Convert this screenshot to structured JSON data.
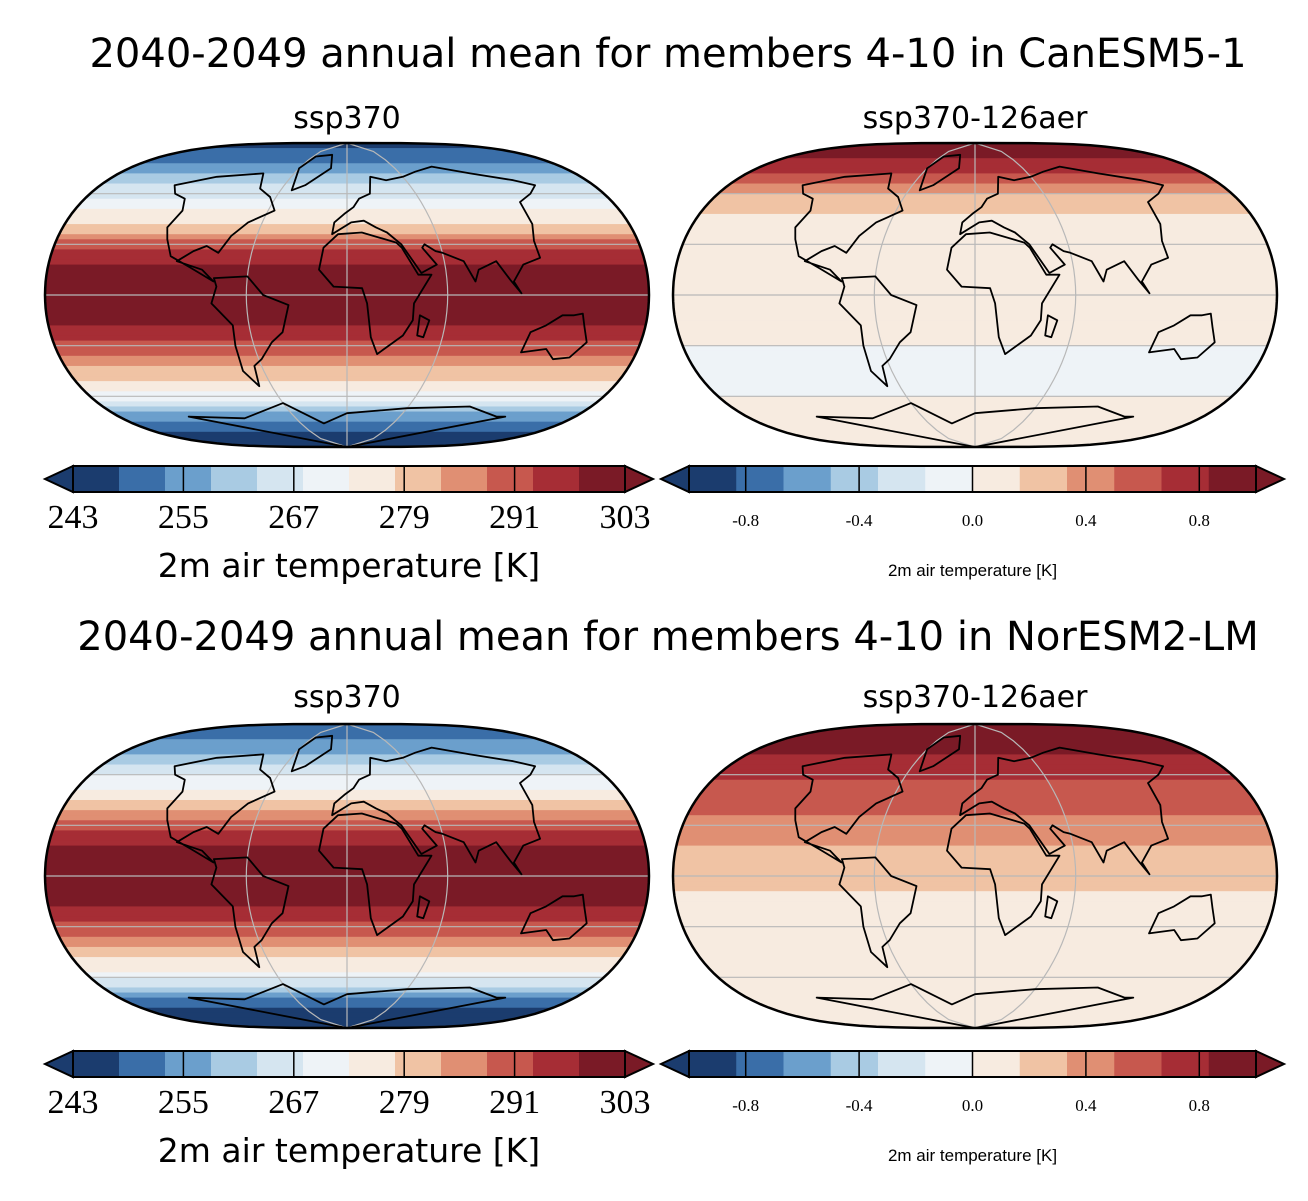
{
  "palette": {
    "rdbu_r_12": [
      "#1b3c6e",
      "#3a6ea8",
      "#6b9fcc",
      "#a9cbe3",
      "#d5e5f0",
      "#eef3f7",
      "#f7ebe0",
      "#f0c3a4",
      "#e08f73",
      "#c7584e",
      "#a62d35",
      "#7a1a26"
    ],
    "continent_outline": "#000000",
    "graticule": "#b8b8b8"
  },
  "chart_data": [
    {
      "type": "heatmap",
      "section_title": "2040-2049 annual mean for members 4-10 in CanESM5-1",
      "panel_title": "ssp370",
      "colorbar_label": "2m air temperature [K]",
      "colorbar_ticks": [
        "243",
        "255",
        "267",
        "279",
        "291",
        "303"
      ],
      "range": [
        243,
        303
      ],
      "levels": 12,
      "extend": "both",
      "field_profile": {
        "lat": [
          90,
          75,
          65,
          55,
          45,
          35,
          25,
          15,
          0,
          -15,
          -25,
          -35,
          -45,
          -55,
          -65,
          -75,
          -90
        ],
        "value": [
          247,
          255,
          263,
          270,
          276,
          285,
          294,
          300,
          302,
          300,
          295,
          289,
          281,
          275,
          265,
          252,
          243
        ]
      }
    },
    {
      "type": "heatmap",
      "section_title": "2040-2049 annual mean for members 4-10 in CanESM5-1",
      "panel_title": "ssp370-126aer",
      "colorbar_label": "2m air temperature [K]",
      "colorbar_ticks": [
        "-0.8",
        "-0.4",
        "0.0",
        "0.4",
        "0.8"
      ],
      "range": [
        -1.0,
        1.0
      ],
      "levels": 12,
      "extend": "both",
      "field_profile": {
        "lat": [
          90,
          75,
          65,
          55,
          45,
          30,
          15,
          0,
          -15,
          -30,
          -45,
          -60,
          -75,
          -90
        ],
        "value": [
          0.95,
          0.75,
          0.45,
          0.2,
          0.15,
          0.15,
          0.1,
          0.05,
          0.05,
          0.0,
          -0.05,
          0.0,
          0.05,
          0.05
        ]
      }
    },
    {
      "type": "heatmap",
      "section_title": "2040-2049 annual mean for members 4-10 in NorESM2-LM",
      "panel_title": "ssp370",
      "colorbar_label": "2m air temperature [K]",
      "colorbar_ticks": [
        "243",
        "255",
        "267",
        "279",
        "291",
        "303"
      ],
      "range": [
        243,
        303
      ],
      "levels": 12,
      "extend": "both",
      "field_profile": {
        "lat": [
          90,
          75,
          65,
          55,
          45,
          35,
          25,
          15,
          0,
          -15,
          -25,
          -35,
          -45,
          -55,
          -65,
          -75,
          -90
        ],
        "value": [
          249,
          256,
          264,
          271,
          277,
          286,
          295,
          300,
          302,
          300,
          295,
          289,
          281,
          274,
          263,
          249,
          243
        ]
      }
    },
    {
      "type": "heatmap",
      "section_title": "2040-2049 annual mean for members 4-10 in NorESM2-LM",
      "panel_title": "ssp370-126aer",
      "colorbar_label": "2m air temperature [K]",
      "colorbar_ticks": [
        "-0.8",
        "-0.4",
        "0.0",
        "0.4",
        "0.8"
      ],
      "range": [
        -1.0,
        1.0
      ],
      "levels": 12,
      "extend": "both",
      "field_profile": {
        "lat": [
          90,
          75,
          60,
          45,
          30,
          15,
          0,
          -15,
          -30,
          -45,
          -60,
          -75,
          -90
        ],
        "value": [
          0.95,
          0.85,
          0.7,
          0.55,
          0.45,
          0.3,
          0.2,
          0.15,
          0.05,
          0.05,
          0.1,
          0.1,
          0.05
        ]
      }
    }
  ]
}
